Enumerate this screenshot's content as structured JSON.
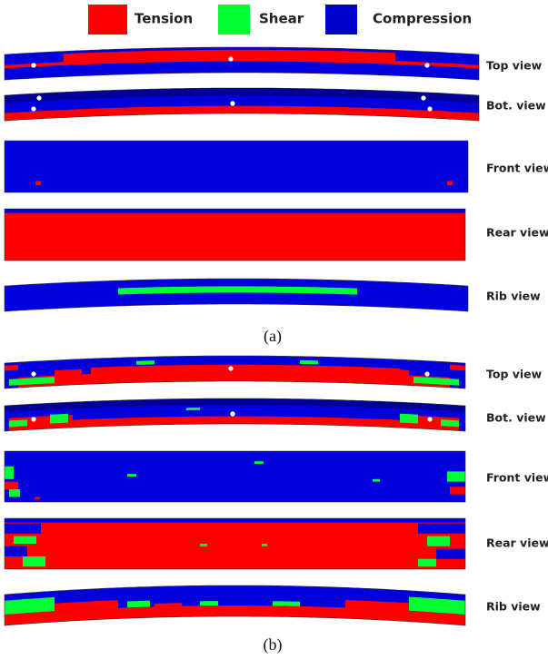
{
  "legend": [
    "Tension",
    "Shear",
    "Compression"
  ],
  "panels": [
    {
      "label": "(a)",
      "views": [
        "Top view",
        "Bot. view",
        "Front view",
        "Rear view",
        "Rib view"
      ]
    },
    {
      "label": "(b)",
      "views": [
        "Top view",
        "Bot. view",
        "Front view",
        "Rear view",
        "Rib view"
      ]
    }
  ]
}
